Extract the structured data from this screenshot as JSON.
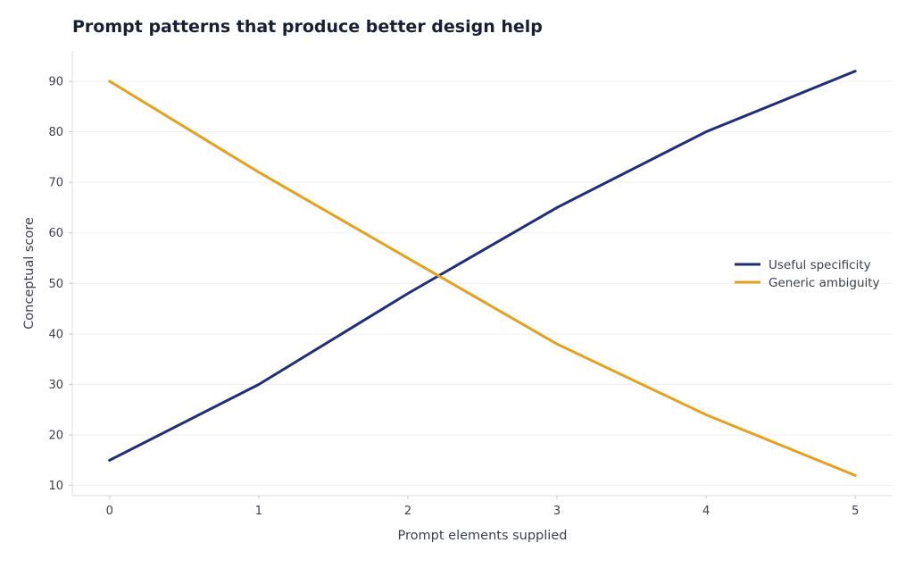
{
  "chart_data": {
    "type": "line",
    "title": "Prompt patterns that produce better design help",
    "xlabel": "Prompt elements supplied",
    "ylabel": "Conceptual score",
    "x": [
      0,
      1,
      2,
      3,
      4,
      5
    ],
    "x_ticks": [
      "0",
      "1",
      "2",
      "3",
      "4",
      "5"
    ],
    "xlim": [
      -0.25,
      5.25
    ],
    "ylim": [
      8,
      96
    ],
    "y_ticks": [
      10,
      20,
      30,
      40,
      50,
      60,
      70,
      80,
      90
    ],
    "grid": "horizontal",
    "legend_position": "right",
    "series": [
      {
        "name": "Useful specificity",
        "color": "#1f2d7a",
        "values": [
          15,
          30,
          48,
          65,
          80,
          92
        ]
      },
      {
        "name": "Generic ambiguity",
        "color": "#e5a11e",
        "values": [
          90,
          72,
          55,
          38,
          24,
          12
        ]
      }
    ]
  }
}
